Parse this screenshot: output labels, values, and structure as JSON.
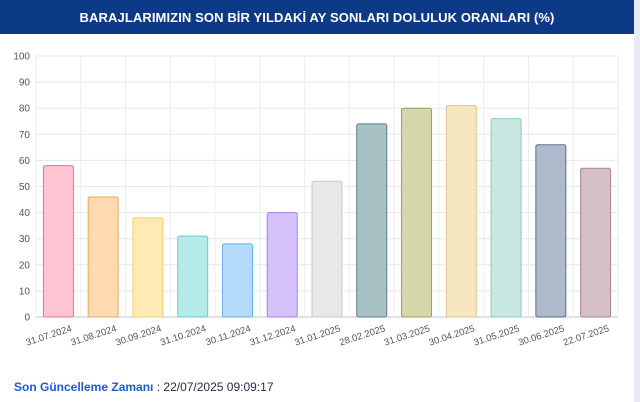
{
  "header": {
    "title": "BARAJLARIMIZIN SON BİR YILDAKİ AY SONLARI DOLULUK ORANLARI (%)"
  },
  "footer": {
    "label": "Son Güncelleme Zamanı",
    "separator": " : ",
    "value": "22/07/2025 09:09:17"
  },
  "chart_data": {
    "type": "bar",
    "title": "BARAJLARIMIZIN SON BİR YILDAKİ AY SONLARI DOLULUK ORANLARI (%)",
    "xlabel": "",
    "ylabel": "",
    "ylim": [
      0,
      100
    ],
    "yticks": [
      0,
      10,
      20,
      30,
      40,
      50,
      60,
      70,
      80,
      90,
      100
    ],
    "grid": true,
    "legend": "none",
    "categories": [
      "31.07.2024",
      "31.08.2024",
      "30.09.2024",
      "31.10.2024",
      "30.11.2024",
      "31.12.2024",
      "31.01.2025",
      "28.02.2025",
      "31.03.2025",
      "30.04.2025",
      "31.05.2025",
      "30.06.2025",
      "22.07.2025"
    ],
    "values": [
      58,
      46,
      38,
      31,
      28,
      40,
      52,
      74,
      80,
      81,
      76,
      66,
      57
    ],
    "fills": [
      "#ffc4d2",
      "#ffd9b0",
      "#ffeab4",
      "#b5ecea",
      "#b4dcf8",
      "#d6c2fb",
      "#e7e8ea",
      "#a8c1c4",
      "#d4d7a9",
      "#f7e7c1",
      "#c9e7e1",
      "#aebacc",
      "#d6bfc6"
    ],
    "strokes": [
      "#f06e92",
      "#f2a556",
      "#f1cd6a",
      "#63cfcb",
      "#5eb4ec",
      "#a67cf2",
      "#c6c8cc",
      "#5d7d84",
      "#98a058",
      "#e0c685",
      "#8ec9bd",
      "#5d6e8c",
      "#a58590"
    ]
  }
}
